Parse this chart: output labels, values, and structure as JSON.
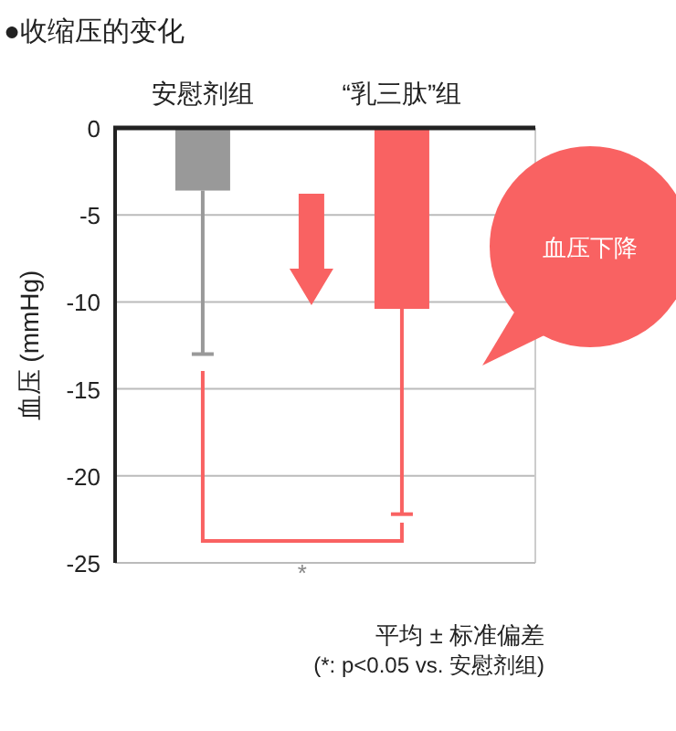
{
  "chart_data": {
    "type": "bar",
    "title": "●收缩压的变化",
    "ylabel": "血压 (mmHg)",
    "categories": [
      "安慰剂组",
      "“乳三肽”组"
    ],
    "values": [
      -3.6,
      -10.4
    ],
    "colors": [
      "#999999",
      "#f96262"
    ],
    "errors": [
      [
        -13.0,
        -3.6
      ],
      [
        -22.2,
        -10.4
      ]
    ],
    "ylim": [
      -25,
      0
    ],
    "yticks": [
      0,
      -5,
      -10,
      -15,
      -20,
      -25
    ],
    "grid": "y",
    "annotations": [
      "血压下降",
      "*",
      "平均 ± 标准偏差",
      "(*: p<0.05  vs. 安慰剂组)"
    ]
  }
}
